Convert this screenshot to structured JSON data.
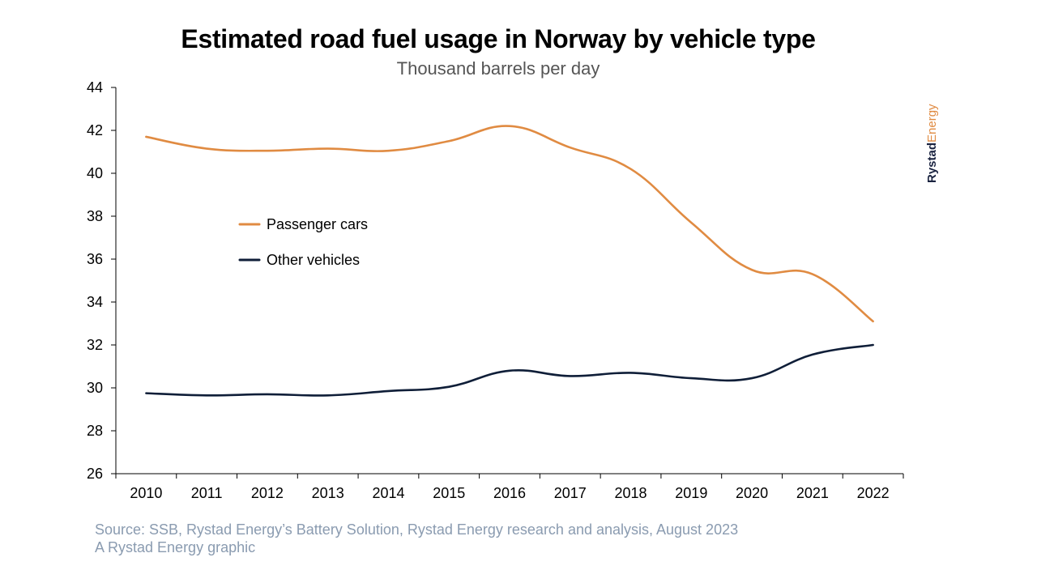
{
  "chart_data": {
    "type": "line",
    "title": "Estimated road fuel usage in Norway by vehicle type",
    "subtitle": "Thousand barrels per day",
    "categories": [
      "2010",
      "2011",
      "2012",
      "2013",
      "2014",
      "2015",
      "2016",
      "2017",
      "2018",
      "2019",
      "2020",
      "2021",
      "2022"
    ],
    "ylim": [
      26,
      44
    ],
    "yticks": [
      26,
      28,
      30,
      32,
      34,
      36,
      38,
      40,
      42,
      44
    ],
    "series": [
      {
        "name": "Passenger cars",
        "color": "#e08b42",
        "values": [
          41.7,
          41.15,
          41.05,
          41.15,
          41.05,
          41.5,
          42.2,
          41.2,
          40.2,
          37.7,
          35.5,
          35.3,
          33.1
        ]
      },
      {
        "name": "Other vehicles",
        "color": "#0f1e38",
        "values": [
          29.75,
          29.65,
          29.7,
          29.65,
          29.85,
          30.05,
          30.8,
          30.55,
          30.7,
          30.45,
          30.45,
          31.55,
          32.0
        ]
      }
    ],
    "legend": "inside-left"
  },
  "logo": {
    "part1": "Rystad",
    "part2": "Energy"
  },
  "source": {
    "line1": "Source: SSB, Rystad Energy’s Battery Solution, Rystad Energy research and analysis, August 2023",
    "line2": "A Rystad Energy graphic"
  }
}
